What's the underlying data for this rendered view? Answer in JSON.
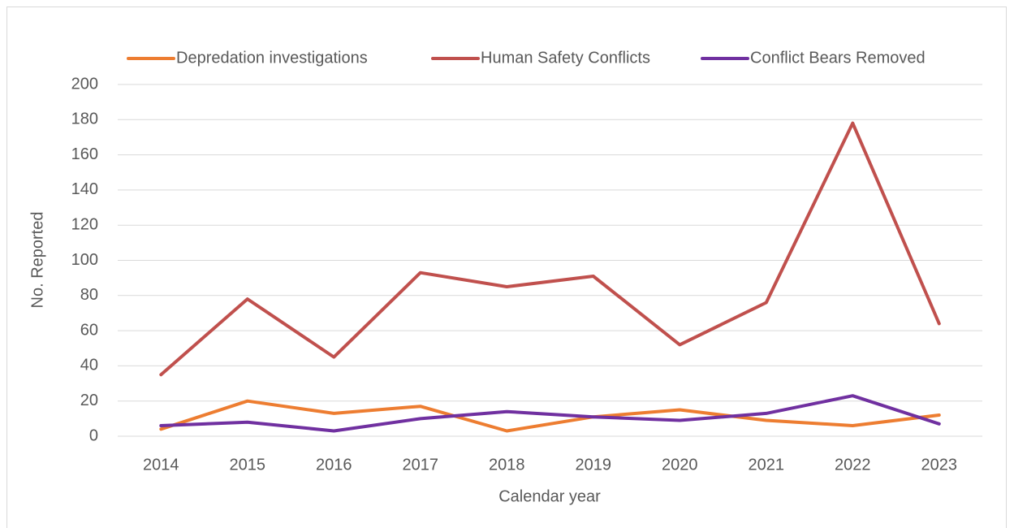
{
  "chart_data": {
    "type": "line",
    "x_label": "Calendar year",
    "y_label": "No. Reported",
    "categories": [
      "2014",
      "2015",
      "2016",
      "2017",
      "2018",
      "2019",
      "2020",
      "2021",
      "2022",
      "2023"
    ],
    "series": [
      {
        "name": "Depredation investigations",
        "color": "#ed7d31",
        "values": [
          4,
          20,
          13,
          17,
          3,
          11,
          15,
          9,
          6,
          12
        ]
      },
      {
        "name": "Human Safety Conflicts",
        "color": "#c0504d",
        "values": [
          35,
          78,
          45,
          93,
          85,
          91,
          52,
          76,
          178,
          64
        ]
      },
      {
        "name": "Conflict Bears Removed",
        "color": "#7030a0",
        "values": [
          6,
          8,
          3,
          10,
          14,
          11,
          9,
          13,
          23,
          7
        ]
      }
    ],
    "ylim": [
      0,
      200
    ],
    "yticks": [
      0,
      20,
      40,
      60,
      80,
      100,
      120,
      140,
      160,
      180,
      200
    ],
    "grid": true,
    "legend": "top"
  }
}
